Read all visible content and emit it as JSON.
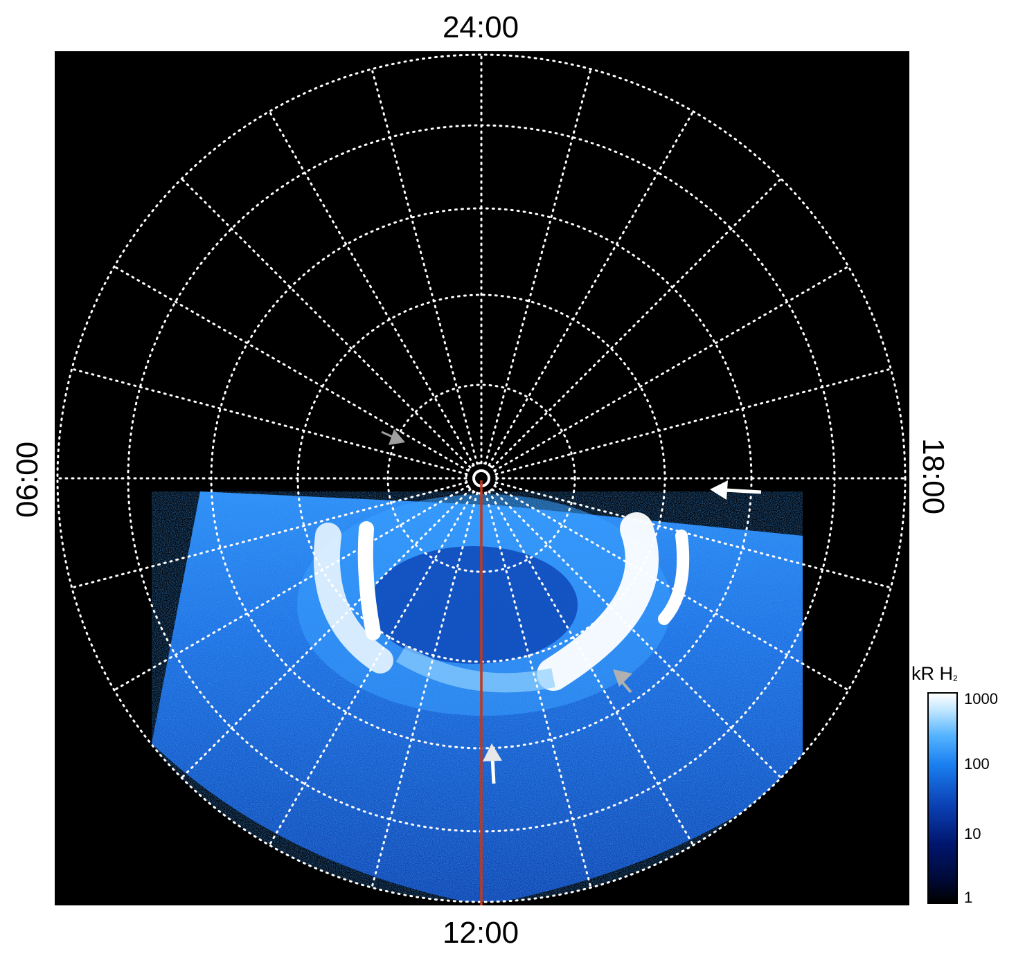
{
  "local_time_labels": {
    "top": "24:00",
    "bottom": "12:00",
    "left": "06:00",
    "right": "18:00"
  },
  "colorbar": {
    "title_main": "kR H",
    "title_sub": "2",
    "scale": "log",
    "ticks": [
      "1000",
      "100",
      "10",
      "1"
    ]
  },
  "colors": {
    "background": "#000000",
    "grid": "#ffffff",
    "meridian_line": "#c0391b",
    "emission_low": "#0b3fb2",
    "emission_mid": "#1a7ff0",
    "emission_high": "#ffffff"
  },
  "markers": [
    "white-arrow",
    "white-arrow",
    "gray-arrow",
    "gray-arrow"
  ]
}
